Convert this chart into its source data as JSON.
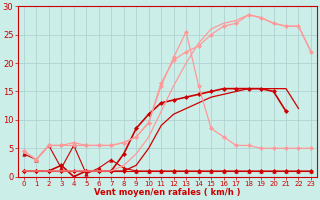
{
  "xlabel": "Vent moyen/en rafales ( km/h )",
  "background_color": "#cceee8",
  "grid_color": "#aacccc",
  "x_values": [
    0,
    1,
    2,
    3,
    4,
    5,
    6,
    7,
    8,
    9,
    10,
    11,
    12,
    13,
    14,
    15,
    16,
    17,
    18,
    19,
    20,
    21,
    22,
    23
  ],
  "lines": [
    {
      "y": [
        1.0,
        1.0,
        1.0,
        1.0,
        1.0,
        1.0,
        1.0,
        1.0,
        1.0,
        1.0,
        1.0,
        1.0,
        1.0,
        1.0,
        1.0,
        1.0,
        1.0,
        1.0,
        1.0,
        1.0,
        1.0,
        1.0,
        1.0,
        1.0
      ],
      "color": "#cc0000",
      "linewidth": 0.8,
      "marker": "D",
      "markersize": 2.0
    },
    {
      "y": [
        4.0,
        3.0,
        5.5,
        1.5,
        5.5,
        0.5,
        1.5,
        3.0,
        1.5,
        1.0,
        1.0,
        1.0,
        1.0,
        1.0,
        1.0,
        1.0,
        1.0,
        1.0,
        1.0,
        1.0,
        1.0,
        1.0,
        1.0,
        1.0
      ],
      "color": "#cc0000",
      "linewidth": 0.8,
      "marker": "^",
      "markersize": 2.5
    },
    {
      "y": [
        1.0,
        1.0,
        1.0,
        2.0,
        0.0,
        1.0,
        1.0,
        1.0,
        4.0,
        8.5,
        11.0,
        13.0,
        13.5,
        14.0,
        14.5,
        15.0,
        15.5,
        15.5,
        15.5,
        15.5,
        15.0,
        11.5,
        null,
        null
      ],
      "color": "#cc0000",
      "linewidth": 1.2,
      "marker": "D",
      "markersize": 2.0
    },
    {
      "y": [
        1.0,
        1.0,
        1.0,
        1.0,
        1.0,
        1.0,
        1.0,
        1.0,
        1.0,
        2.0,
        5.0,
        9.0,
        11.0,
        12.0,
        13.0,
        14.0,
        14.5,
        15.0,
        15.5,
        15.5,
        15.5,
        15.5,
        12.0,
        null
      ],
      "color": "#cc0000",
      "linewidth": 0.9,
      "marker": null,
      "markersize": 0
    },
    {
      "y": [
        1.0,
        1.0,
        1.0,
        1.0,
        1.0,
        1.0,
        1.0,
        1.0,
        2.0,
        4.0,
        7.0,
        11.5,
        16.0,
        20.0,
        23.5,
        26.0,
        27.0,
        27.5,
        28.5,
        28.0,
        27.0,
        26.5,
        26.5,
        22.0
      ],
      "color": "#ff9999",
      "linewidth": 0.9,
      "marker": null,
      "markersize": 0
    },
    {
      "y": [
        4.5,
        3.0,
        5.5,
        5.5,
        6.0,
        5.5,
        5.5,
        5.5,
        6.0,
        7.0,
        9.5,
        16.0,
        21.0,
        25.5,
        16.0,
        8.5,
        7.0,
        5.5,
        5.5,
        5.0,
        5.0,
        5.0,
        5.0,
        5.0
      ],
      "color": "#ff9999",
      "linewidth": 0.9,
      "marker": "D",
      "markersize": 2.0
    },
    {
      "y": [
        4.5,
        3.0,
        5.5,
        5.5,
        5.5,
        5.5,
        5.5,
        5.5,
        6.0,
        7.0,
        9.5,
        16.5,
        20.5,
        22.0,
        23.0,
        25.0,
        26.5,
        27.0,
        28.5,
        28.0,
        27.0,
        26.5,
        26.5,
        22.0
      ],
      "color": "#ff9999",
      "linewidth": 0.9,
      "marker": "D",
      "markersize": 2.0
    }
  ],
  "ylim": [
    0,
    30
  ],
  "xlim": [
    -0.5,
    23.5
  ],
  "yticks": [
    0,
    5,
    10,
    15,
    20,
    25,
    30
  ],
  "xticks": [
    0,
    1,
    2,
    3,
    4,
    5,
    6,
    7,
    8,
    9,
    10,
    11,
    12,
    13,
    14,
    15,
    16,
    17,
    18,
    19,
    20,
    21,
    22,
    23
  ],
  "tick_fontsize": 5,
  "xlabel_fontsize": 6,
  "spine_color": "#cc0000",
  "tick_color": "#cc0000"
}
